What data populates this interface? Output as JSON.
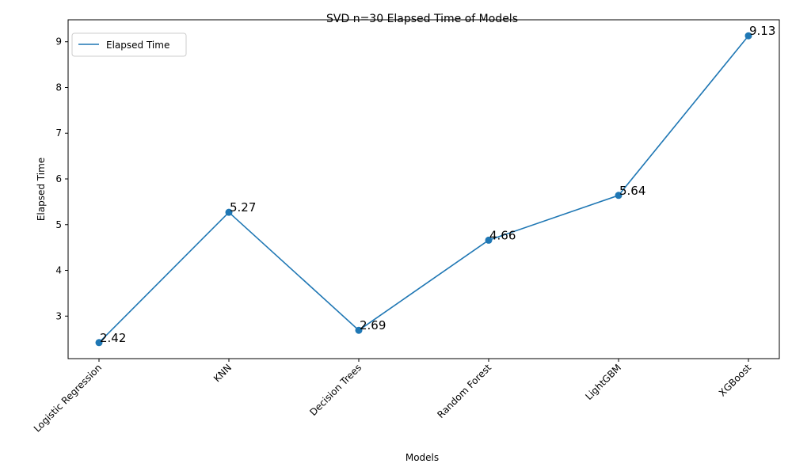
{
  "chart_data": {
    "type": "line",
    "title": "SVD n=30  Elapsed Time of Models",
    "xlabel": "Models",
    "ylabel": "Elapsed Time",
    "categories": [
      "Logistic Regression",
      "KNN",
      "Decision Trees",
      "Random Forest",
      "LightGBM",
      "XGBoost"
    ],
    "series": [
      {
        "name": "Elapsed Time",
        "values": [
          2.42,
          5.27,
          2.69,
          4.66,
          5.64,
          9.13
        ],
        "data_labels": [
          "2.42",
          "5.27",
          "2.69",
          "4.66",
          "5.64",
          "9.13"
        ],
        "color": "#1f77b4",
        "marker": "circle"
      }
    ],
    "ylim": [
      2.07,
      9.48
    ],
    "yticks": [
      3,
      4,
      5,
      6,
      7,
      8,
      9
    ],
    "ytick_labels": [
      "3",
      "4",
      "5",
      "6",
      "7",
      "8",
      "9"
    ],
    "xtick_rotation": 45,
    "grid": false,
    "legend": {
      "position": "top-left",
      "entries": [
        "Elapsed Time"
      ]
    }
  }
}
